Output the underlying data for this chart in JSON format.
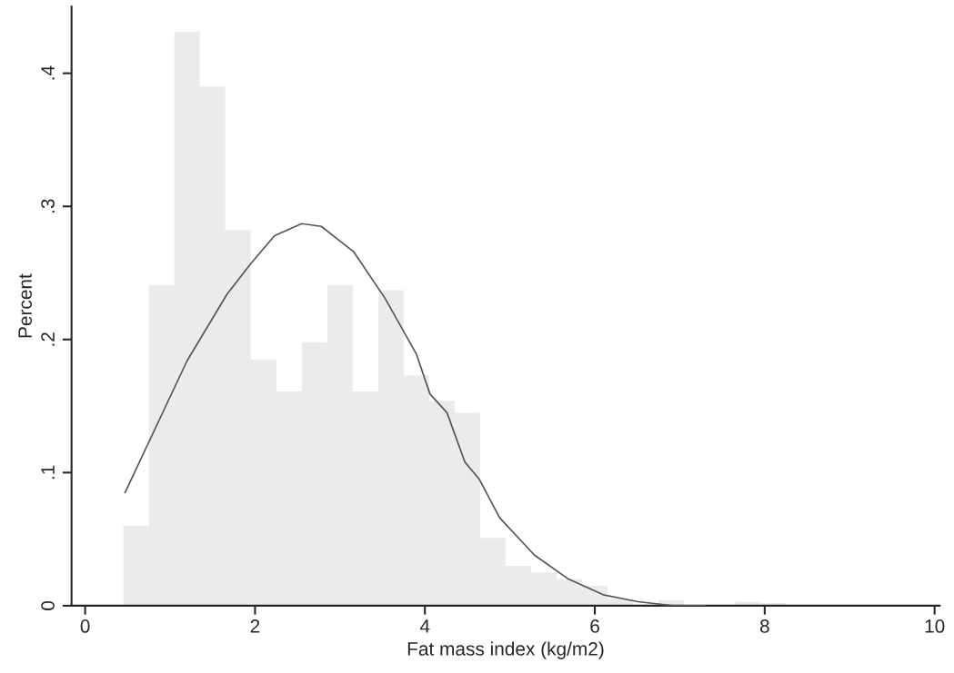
{
  "chart_data": {
    "type": "histogram",
    "xlabel": "Fat mass index (kg/m2)",
    "ylabel": "Percent",
    "xlim": [
      -0.16,
      10.06
    ],
    "ylim": [
      0,
      0.45
    ],
    "xticks": [
      0,
      2,
      4,
      6,
      8,
      10
    ],
    "yticks": [
      0,
      {
        "value": 0.1,
        "label": ".1"
      },
      {
        "value": 0.2,
        "label": ".2"
      },
      {
        "value": 0.3,
        "label": ".3"
      },
      {
        "value": 0.4,
        "label": ".4"
      }
    ],
    "grid": false,
    "legend": false,
    "color": "#ebebeb",
    "bins": [
      0.45,
      0.75,
      1.05,
      1.35,
      1.65,
      1.95,
      2.25,
      2.55,
      2.85,
      3.15,
      3.45,
      3.75,
      4.05,
      4.35,
      4.65,
      4.95,
      5.25,
      5.55,
      5.85,
      6.15,
      6.45,
      6.75,
      7.05,
      7.35,
      7.65,
      7.95,
      8.25
    ],
    "values": [
      0.06,
      0.241,
      0.431,
      0.39,
      0.282,
      0.185,
      0.161,
      0.198,
      0.241,
      0.161,
      0.237,
      0.173,
      0.154,
      0.145,
      0.051,
      0.03,
      0.025,
      0.02,
      0.015,
      0.005,
      0,
      0.004,
      0,
      0,
      0.003,
      0.002
    ],
    "series": [
      {
        "type": "line",
        "color": "#555555",
        "line_style": "solid",
        "marker": "none",
        "x": [
          0.47,
          1.2,
          1.67,
          1.95,
          2.23,
          2.55,
          2.78,
          3.16,
          3.53,
          3.9,
          4.06,
          4.26,
          4.47,
          4.64,
          4.88,
          5.29,
          5.69,
          6.11,
          6.51,
          6.92,
          7.3
        ],
        "values": [
          0.085,
          0.184,
          0.234,
          0.257,
          0.278,
          0.287,
          0.285,
          0.266,
          0.231,
          0.189,
          0.159,
          0.145,
          0.108,
          0.095,
          0.066,
          0.038,
          0.02,
          0.008,
          0.003,
          0,
          0
        ]
      }
    ]
  }
}
